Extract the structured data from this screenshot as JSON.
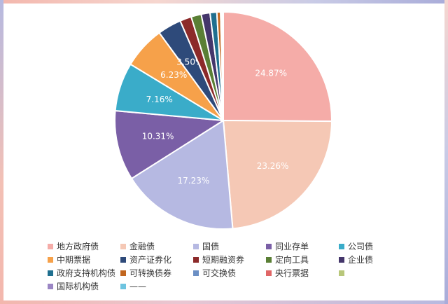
{
  "chart_data": {
    "type": "pie",
    "slices": [
      {
        "name": "地方政府债",
        "value": 24.87,
        "label": "24.87%",
        "color": "#f5aca8"
      },
      {
        "name": "金融债",
        "value": 23.26,
        "label": "23.26%",
        "color": "#f5c8b5"
      },
      {
        "name": "国债",
        "value": 17.23,
        "label": "17.23%",
        "color": "#b6b9e2"
      },
      {
        "name": "同业存单",
        "value": 10.31,
        "label": "10.31%",
        "color": "#7a5fa6"
      },
      {
        "name": "公司债",
        "value": 7.16,
        "label": "7.16%",
        "color": "#3aacc9"
      },
      {
        "name": "中期票据",
        "value": 6.23,
        "label": "6.23%",
        "color": "#f6a14a"
      },
      {
        "name": "资产证券化",
        "value": 3.5,
        "label": "3.50%",
        "color": "#2e4a7a"
      },
      {
        "name": "短期融资券",
        "value": 1.7,
        "label": "",
        "color": "#8c2a2a"
      },
      {
        "name": "定向工具",
        "value": 1.5,
        "label": "",
        "color": "#5a7f35"
      },
      {
        "name": "企业债",
        "value": 1.3,
        "label": "",
        "color": "#44366b"
      },
      {
        "name": "政府支持机构债",
        "value": 1.0,
        "label": "",
        "color": "#1f6f8f"
      },
      {
        "name": "可转换债券",
        "value": 0.55,
        "label": "",
        "color": "#c1661f"
      },
      {
        "name": "可交换债",
        "value": 0.2,
        "label": "",
        "color": "#6b8fc4"
      },
      {
        "name": "央行票据",
        "value": 0.1,
        "label": "",
        "color": "#e06666"
      },
      {
        "name": "",
        "value": 0.05,
        "label": "",
        "color": "#b8c77a"
      },
      {
        "name": "国际机构债",
        "value": 0.03,
        "label": "",
        "color": "#9b86c4"
      },
      {
        "name": "——",
        "value": 0.01,
        "label": "",
        "color": "#6ec4e0"
      }
    ],
    "legend_position": "bottom"
  }
}
